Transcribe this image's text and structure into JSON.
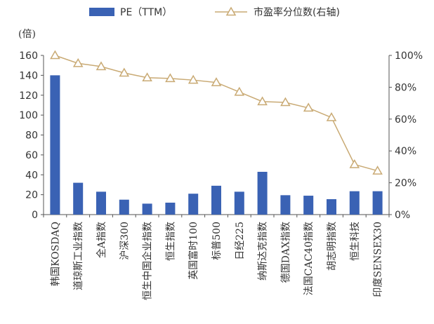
{
  "chart_data": {
    "type": "bar",
    "unit_label": "(倍)",
    "categories": [
      "韩国KOSDAQ",
      "道琼斯工业指数",
      "全A指数",
      "沪深300",
      "恒生中国企业指数",
      "恒生指数",
      "英国富时100",
      "标普500",
      "日经225",
      "纳斯达克指数",
      "德国DAX指数",
      "法国CAC40指数",
      "胡志明指数",
      "恒生科技",
      "印度SENSEX30"
    ],
    "series": [
      {
        "name": "PE（TTM）",
        "axis": "left",
        "kind": "bar",
        "color": "#3a62b4",
        "values": [
          140,
          32,
          23,
          15,
          11,
          12,
          21,
          29,
          23,
          43,
          19.5,
          19,
          15.5,
          23.5,
          23.5
        ]
      },
      {
        "name": "市盈率分位数(右轴)",
        "axis": "right",
        "kind": "line",
        "color": "#c9aa74",
        "values": [
          100,
          95,
          93,
          89,
          86,
          85.5,
          84.5,
          83,
          77,
          71,
          70.5,
          67,
          61,
          31.5,
          27.5
        ]
      }
    ],
    "y_left": {
      "min": 0,
      "max": 160,
      "step": 20,
      "ticks": [
        "0",
        "20",
        "40",
        "60",
        "80",
        "100",
        "120",
        "140",
        "160"
      ]
    },
    "y_right": {
      "min": 0,
      "max": 100,
      "step": 20,
      "ticks": [
        "0%",
        "20%",
        "40%",
        "60%",
        "80%",
        "100%"
      ]
    },
    "legend_position": "top-center",
    "grid": false
  }
}
